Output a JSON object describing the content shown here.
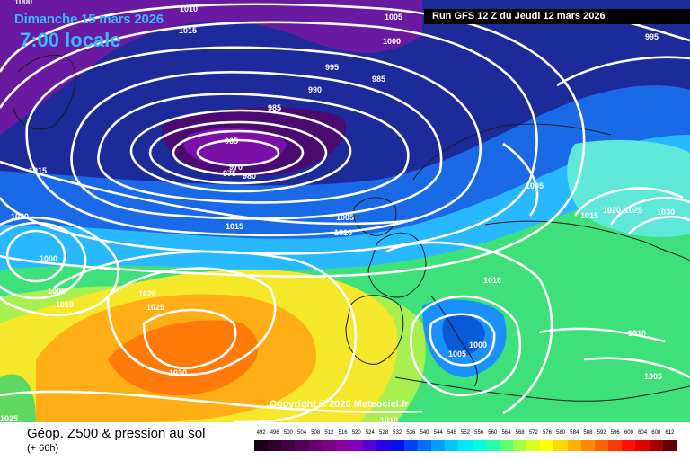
{
  "header": {
    "date": "Dimanche 15 mars 2026",
    "time": "7:00 locale",
    "run_info": "Run GFS 12 Z du Jeudi 12 mars 2026"
  },
  "map": {
    "copyright": "Copyright © 2026 Meteociel.fr",
    "pressure_labels": [
      "1000",
      "1010",
      "1005",
      "1015",
      "1000",
      "995",
      "990",
      "985",
      "985",
      "965",
      "970",
      "975",
      "980",
      "1015",
      "1020",
      "1015",
      "1005",
      "1010",
      "1000",
      "1005",
      "1010",
      "1020",
      "1025",
      "1030",
      "1025",
      "1005",
      "1015",
      "1020",
      "1025",
      "1030",
      "1010",
      "1000",
      "1005",
      "1010",
      "1005",
      "1010",
      "995"
    ]
  },
  "footer": {
    "title": "Géop. Z500 & pression au sol",
    "lead": "(+ 66h)"
  },
  "legend": {
    "labels": [
      "492",
      "496",
      "500",
      "504",
      "508",
      "512",
      "516",
      "520",
      "524",
      "528",
      "532",
      "536",
      "540",
      "544",
      "548",
      "552",
      "556",
      "560",
      "564",
      "568",
      "572",
      "576",
      "580",
      "584",
      "588",
      "592",
      "596",
      "600",
      "604",
      "608",
      "612"
    ],
    "colors": [
      "#1a001a",
      "#2d0030",
      "#3f0045",
      "#520058",
      "#66006e",
      "#7a0088",
      "#8d00a0",
      "#8000c0",
      "#5800d8",
      "#2a00e8",
      "#0010f0",
      "#0040ff",
      "#0070ff",
      "#00a0ff",
      "#00c8ff",
      "#00e8ff",
      "#00ffe0",
      "#20ffb0",
      "#60ff70",
      "#a0ff40",
      "#d8ff20",
      "#ffff00",
      "#ffd800",
      "#ffb000",
      "#ff8800",
      "#ff6000",
      "#ff3800",
      "#ff1000",
      "#e00000",
      "#a00000",
      "#600000"
    ]
  }
}
